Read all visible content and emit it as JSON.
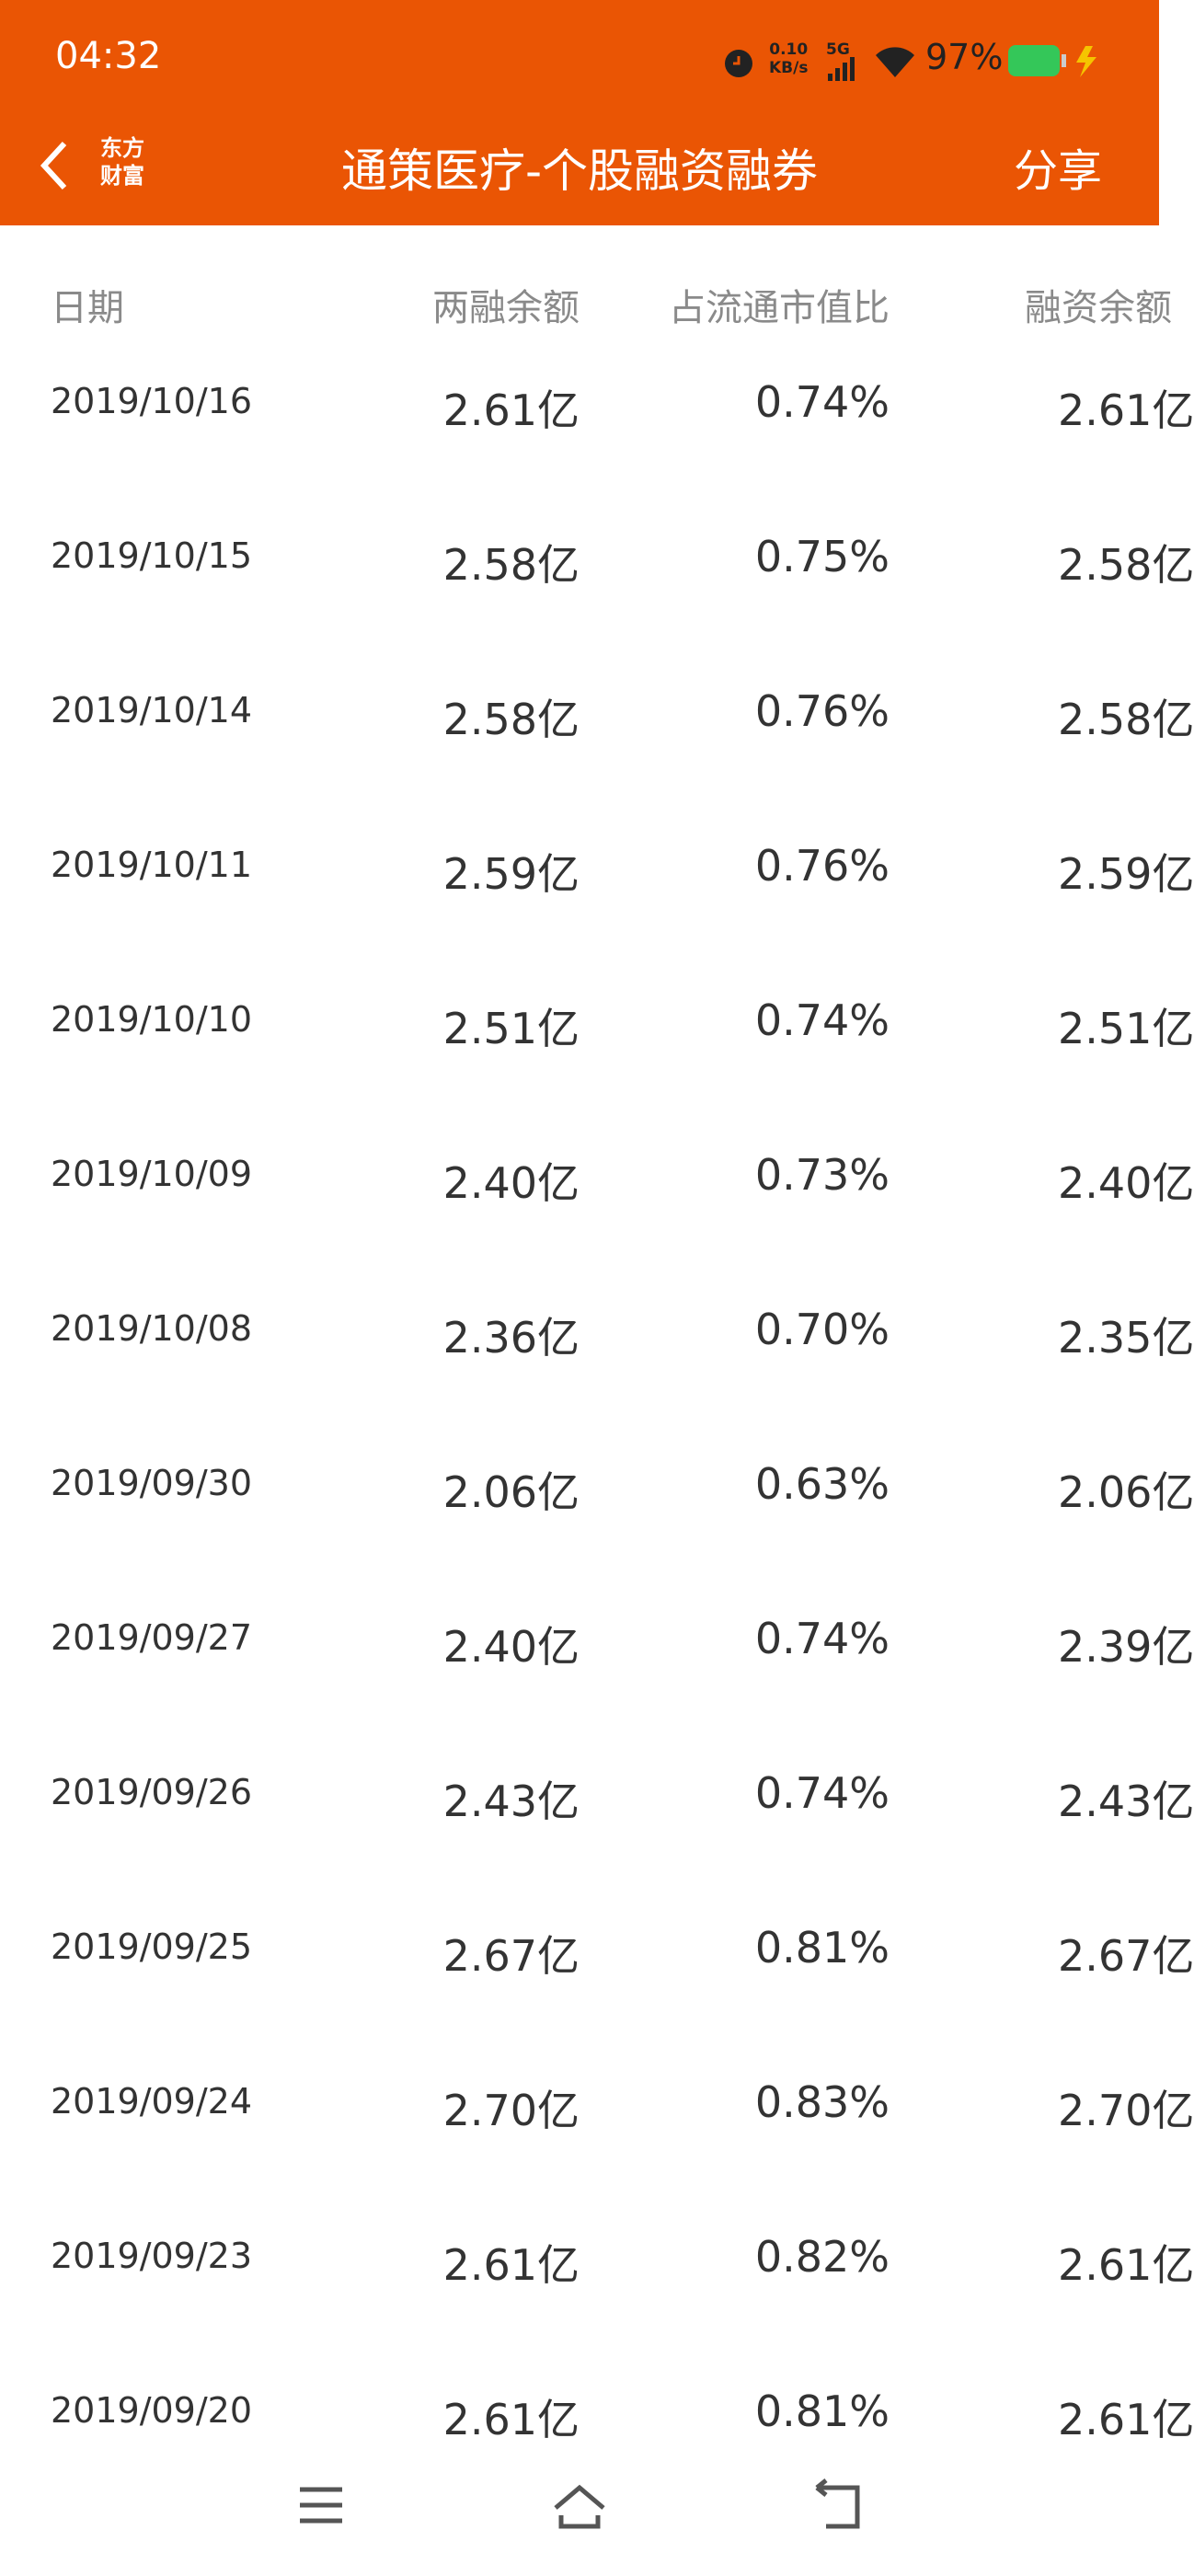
{
  "status_bar": {
    "time": "04:32",
    "speed": "0.10",
    "speed_unit": "KB/s",
    "network": "5G",
    "battery": "97%"
  },
  "header": {
    "logo_top": "东方",
    "logo_bottom": "财富",
    "title": "通策医疗-个股融资融券",
    "share": "分享"
  },
  "table": {
    "columns": [
      "日期",
      "两融余额",
      "占流通市值比",
      "融资余额"
    ],
    "rows": [
      [
        "2019/10/16",
        "2.61亿",
        "0.74%",
        "2.61亿"
      ],
      [
        "2019/10/15",
        "2.58亿",
        "0.75%",
        "2.58亿"
      ],
      [
        "2019/10/14",
        "2.58亿",
        "0.76%",
        "2.58亿"
      ],
      [
        "2019/10/11",
        "2.59亿",
        "0.76%",
        "2.59亿"
      ],
      [
        "2019/10/10",
        "2.51亿",
        "0.74%",
        "2.51亿"
      ],
      [
        "2019/10/09",
        "2.40亿",
        "0.73%",
        "2.40亿"
      ],
      [
        "2019/10/08",
        "2.36亿",
        "0.70%",
        "2.35亿"
      ],
      [
        "2019/09/30",
        "2.06亿",
        "0.63%",
        "2.06亿"
      ],
      [
        "2019/09/27",
        "2.40亿",
        "0.74%",
        "2.39亿"
      ],
      [
        "2019/09/26",
        "2.43亿",
        "0.74%",
        "2.43亿"
      ],
      [
        "2019/09/25",
        "2.67亿",
        "0.81%",
        "2.67亿"
      ],
      [
        "2019/09/24",
        "2.70亿",
        "0.83%",
        "2.70亿"
      ],
      [
        "2019/09/23",
        "2.61亿",
        "0.82%",
        "2.61亿"
      ],
      [
        "2019/09/20",
        "2.61亿",
        "0.81%",
        "2.61亿"
      ]
    ]
  }
}
